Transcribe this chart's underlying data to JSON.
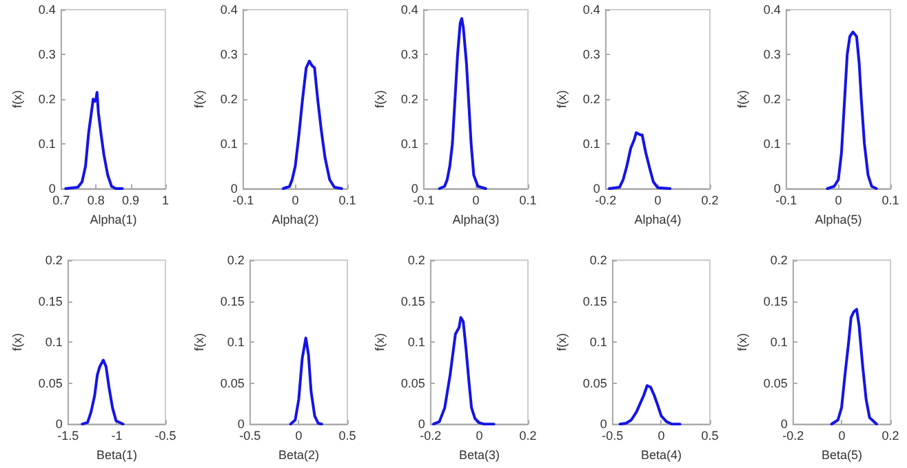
{
  "chart_data": [
    {
      "type": "line",
      "xlabel": "Alpha(1)",
      "ylabel": "f(x)",
      "color": "#1414e6",
      "line_style": "solid",
      "marker": "none",
      "grid": false,
      "xlim": [
        0.7,
        1
      ],
      "xticks": [
        0.7,
        0.8,
        0.9,
        1
      ],
      "ylim": [
        0,
        0.4
      ],
      "yticks": [
        0,
        0.1,
        0.2,
        0.3,
        0.4
      ],
      "x": [
        0.713,
        0.748,
        0.76,
        0.77,
        0.779,
        0.786,
        0.792,
        0.797,
        0.8,
        0.803,
        0.807,
        0.815,
        0.823,
        0.834,
        0.845,
        0.857,
        0.876
      ],
      "values": [
        0,
        0.003,
        0.015,
        0.05,
        0.125,
        0.165,
        0.2,
        0.195,
        0.2,
        0.215,
        0.17,
        0.12,
        0.075,
        0.03,
        0.005,
        0,
        0
      ]
    },
    {
      "type": "line",
      "xlabel": "Alpha(2)",
      "ylabel": "f(x)",
      "color": "#1414e6",
      "line_style": "solid",
      "marker": "none",
      "grid": false,
      "xlim": [
        -0.1,
        0.1
      ],
      "xticks": [
        -0.1,
        0,
        0.1
      ],
      "ylim": [
        0,
        0.4
      ],
      "yticks": [
        0,
        0.1,
        0.2,
        0.3,
        0.4
      ],
      "x": [
        -0.023,
        -0.011,
        -0.006,
        0,
        0.007,
        0.014,
        0.021,
        0.027,
        0.032,
        0.037,
        0.043,
        0.05,
        0.057,
        0.066,
        0.075,
        0.089
      ],
      "values": [
        0,
        0.005,
        0.02,
        0.05,
        0.12,
        0.2,
        0.27,
        0.285,
        0.275,
        0.27,
        0.2,
        0.13,
        0.07,
        0.02,
        0.003,
        0
      ]
    },
    {
      "type": "line",
      "xlabel": "Alpha(3)",
      "ylabel": "f(x)",
      "color": "#1414e6",
      "line_style": "solid",
      "marker": "none",
      "grid": false,
      "xlim": [
        -0.1,
        0.1
      ],
      "xticks": [
        -0.1,
        0,
        0.1
      ],
      "ylim": [
        0,
        0.4
      ],
      "yticks": [
        0,
        0.1,
        0.2,
        0.3,
        0.4
      ],
      "x": [
        -0.07,
        -0.06,
        -0.055,
        -0.05,
        -0.045,
        -0.04,
        -0.035,
        -0.03,
        -0.027,
        -0.024,
        -0.018,
        -0.013,
        -0.009,
        -0.004,
        0.004,
        0.019
      ],
      "values": [
        0,
        0.005,
        0.02,
        0.05,
        0.1,
        0.2,
        0.3,
        0.37,
        0.38,
        0.36,
        0.28,
        0.18,
        0.1,
        0.03,
        0.005,
        0
      ]
    },
    {
      "type": "line",
      "xlabel": "Alpha(4)",
      "ylabel": "f(x)",
      "color": "#1414e6",
      "line_style": "solid",
      "marker": "none",
      "grid": false,
      "xlim": [
        -0.2,
        0.2
      ],
      "xticks": [
        -0.2,
        0,
        0.2
      ],
      "ylim": [
        0,
        0.4
      ],
      "yticks": [
        0,
        0.1,
        0.2,
        0.3,
        0.4
      ],
      "x": [
        -0.186,
        -0.147,
        -0.133,
        -0.119,
        -0.104,
        -0.09,
        -0.083,
        -0.067,
        -0.06,
        -0.046,
        -0.031,
        -0.017,
        0,
        0.047
      ],
      "values": [
        0,
        0.003,
        0.02,
        0.05,
        0.09,
        0.11,
        0.125,
        0.12,
        0.12,
        0.08,
        0.045,
        0.015,
        0.002,
        0
      ]
    },
    {
      "type": "line",
      "xlabel": "Alpha(5)",
      "ylabel": "f(x)",
      "color": "#1414e6",
      "line_style": "solid",
      "marker": "none",
      "grid": false,
      "xlim": [
        -0.1,
        0.1
      ],
      "xticks": [
        -0.1,
        0,
        0.1
      ],
      "ylim": [
        0,
        0.4
      ],
      "yticks": [
        0,
        0.1,
        0.2,
        0.3,
        0.4
      ],
      "x": [
        -0.021,
        -0.008,
        0,
        0.006,
        0.012,
        0.017,
        0.022,
        0.028,
        0.035,
        0.04,
        0.044,
        0.05,
        0.057,
        0.064,
        0.073
      ],
      "values": [
        0,
        0.005,
        0.02,
        0.08,
        0.2,
        0.3,
        0.34,
        0.35,
        0.34,
        0.28,
        0.2,
        0.1,
        0.03,
        0.005,
        0
      ]
    },
    {
      "type": "line",
      "xlabel": "Beta(1)",
      "ylabel": "f(x)",
      "color": "#1414e6",
      "line_style": "solid",
      "marker": "none",
      "grid": false,
      "xlim": [
        -1.5,
        -0.5
      ],
      "xticks": [
        -1.5,
        -1,
        -0.5
      ],
      "ylim": [
        0,
        0.2
      ],
      "yticks": [
        0,
        0.05,
        0.1,
        0.15,
        0.2
      ],
      "x": [
        -1.355,
        -1.3,
        -1.264,
        -1.227,
        -1.2,
        -1.175,
        -1.138,
        -1.11,
        -1.08,
        -1.044,
        -1.007,
        -0.935
      ],
      "values": [
        0,
        0.002,
        0.015,
        0.035,
        0.06,
        0.07,
        0.078,
        0.07,
        0.045,
        0.02,
        0.004,
        0
      ]
    },
    {
      "type": "line",
      "xlabel": "Beta(2)",
      "ylabel": "f(x)",
      "color": "#1414e6",
      "line_style": "solid",
      "marker": "none",
      "grid": false,
      "xlim": [
        -0.5,
        0.5
      ],
      "xticks": [
        -0.5,
        0,
        0.5
      ],
      "ylim": [
        0,
        0.2
      ],
      "yticks": [
        0,
        0.05,
        0.1,
        0.15,
        0.2
      ],
      "x": [
        -0.084,
        -0.036,
        0,
        0.036,
        0.073,
        0.1,
        0.127,
        0.164,
        0.2,
        0.236
      ],
      "values": [
        0,
        0.005,
        0.03,
        0.08,
        0.105,
        0.085,
        0.04,
        0.01,
        0.001,
        0
      ]
    },
    {
      "type": "line",
      "xlabel": "Beta(3)",
      "ylabel": "f(x)",
      "color": "#1414e6",
      "line_style": "solid",
      "marker": "none",
      "grid": false,
      "xlim": [
        -0.2,
        0.2
      ],
      "xticks": [
        -0.2,
        0,
        0.2
      ],
      "ylim": [
        0,
        0.2
      ],
      "yticks": [
        0,
        0.05,
        0.1,
        0.15,
        0.2
      ],
      "x": [
        -0.188,
        -0.164,
        -0.142,
        -0.12,
        -0.098,
        -0.083,
        -0.076,
        -0.066,
        -0.054,
        -0.042,
        -0.032,
        -0.018,
        -0.003,
        0.019,
        0.06
      ],
      "values": [
        0,
        0.003,
        0.02,
        0.06,
        0.11,
        0.118,
        0.13,
        0.125,
        0.09,
        0.05,
        0.02,
        0.007,
        0.002,
        0,
        0
      ]
    },
    {
      "type": "line",
      "xlabel": "Beta(4)",
      "ylabel": "f(x)",
      "color": "#1414e6",
      "line_style": "solid",
      "marker": "none",
      "grid": false,
      "xlim": [
        -0.5,
        0.5
      ],
      "xticks": [
        -0.5,
        0,
        0.5
      ],
      "ylim": [
        0,
        0.2
      ],
      "yticks": [
        0,
        0.05,
        0.1,
        0.15,
        0.2
      ],
      "x": [
        -0.424,
        -0.362,
        -0.308,
        -0.254,
        -0.217,
        -0.18,
        -0.145,
        -0.109,
        -0.072,
        -0.036,
        0,
        0.054,
        0.109,
        0.192
      ],
      "values": [
        0,
        0.001,
        0.005,
        0.015,
        0.025,
        0.035,
        0.047,
        0.045,
        0.035,
        0.023,
        0.01,
        0.003,
        0,
        0
      ]
    },
    {
      "type": "line",
      "xlabel": "Beta(5)",
      "ylabel": "f(x)",
      "color": "#1414e6",
      "line_style": "solid",
      "marker": "none",
      "grid": false,
      "xlim": [
        -0.2,
        0.2
      ],
      "xticks": [
        -0.2,
        0,
        0.2
      ],
      "ylim": [
        0,
        0.2
      ],
      "yticks": [
        0,
        0.05,
        0.1,
        0.15,
        0.2
      ],
      "x": [
        -0.042,
        -0.016,
        -0.001,
        0.013,
        0.028,
        0.038,
        0.049,
        0.061,
        0.071,
        0.086,
        0.1,
        0.114,
        0.143
      ],
      "values": [
        0,
        0.005,
        0.02,
        0.06,
        0.1,
        0.13,
        0.137,
        0.14,
        0.12,
        0.07,
        0.03,
        0.008,
        0
      ]
    }
  ]
}
